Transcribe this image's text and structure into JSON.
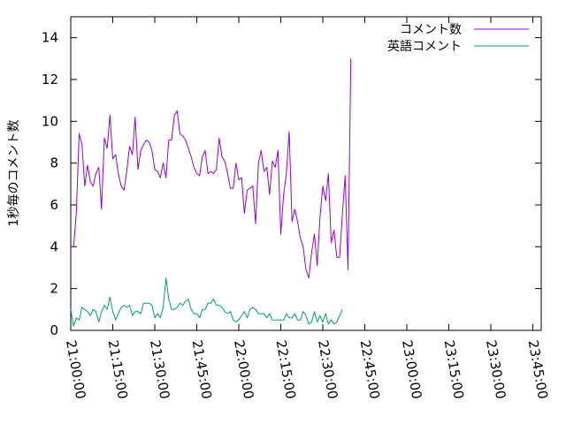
{
  "chart_data": {
    "type": "line",
    "title": "",
    "xlabel": "",
    "ylabel": "1秒毎のコメント数",
    "ylim": [
      0,
      15
    ],
    "yticks": [
      0,
      2,
      4,
      6,
      8,
      10,
      12,
      14
    ],
    "xlim": [
      "21:00:00",
      "23:48:00"
    ],
    "xticks": [
      "21:00:00",
      "21:15:00",
      "21:30:00",
      "21:45:00",
      "22:00:00",
      "22:15:00",
      "22:30:00",
      "22:45:00",
      "23:00:00",
      "23:15:00",
      "23:30:00",
      "23:45:00"
    ],
    "grid": false,
    "legend_position": "top-right",
    "series": [
      {
        "name": "コメント数",
        "color": "#9400d3",
        "points": [
          [
            "21:00:00",
            4.0
          ],
          [
            "21:01:00",
            4.0
          ],
          [
            "21:02:00",
            5.6
          ],
          [
            "21:03:00",
            9.4
          ],
          [
            "21:04:00",
            8.9
          ],
          [
            "21:05:00",
            6.9
          ],
          [
            "21:06:00",
            7.9
          ],
          [
            "21:07:00",
            7.1
          ],
          [
            "21:08:00",
            6.9
          ],
          [
            "21:09:00",
            7.5
          ],
          [
            "21:10:00",
            7.8
          ],
          [
            "21:11:00",
            5.8
          ],
          [
            "21:12:00",
            9.2
          ],
          [
            "21:13:00",
            8.7
          ],
          [
            "21:14:00",
            10.3
          ],
          [
            "21:15:00",
            8.2
          ],
          [
            "21:16:00",
            8.4
          ],
          [
            "21:17:00",
            7.5
          ],
          [
            "21:18:00",
            6.9
          ],
          [
            "21:19:00",
            6.7
          ],
          [
            "21:20:00",
            7.6
          ],
          [
            "21:21:00",
            8.8
          ],
          [
            "21:22:00",
            8.4
          ],
          [
            "21:23:00",
            10.2
          ],
          [
            "21:24:00",
            7.7
          ],
          [
            "21:25:00",
            8.6
          ],
          [
            "21:26:00",
            8.9
          ],
          [
            "21:27:00",
            9.1
          ],
          [
            "21:28:00",
            9.0
          ],
          [
            "21:29:00",
            8.6
          ],
          [
            "21:30:00",
            7.7
          ],
          [
            "21:31:00",
            7.6
          ],
          [
            "21:32:00",
            7.3
          ],
          [
            "21:33:00",
            8.0
          ],
          [
            "21:34:00",
            7.3
          ],
          [
            "21:35:00",
            9.1
          ],
          [
            "21:36:00",
            9.1
          ],
          [
            "21:37:00",
            10.3
          ],
          [
            "21:38:00",
            10.5
          ],
          [
            "21:39:00",
            9.4
          ],
          [
            "21:40:00",
            9.3
          ],
          [
            "21:41:00",
            9.1
          ],
          [
            "21:42:00",
            8.7
          ],
          [
            "21:43:00",
            8.3
          ],
          [
            "21:44:00",
            7.8
          ],
          [
            "21:45:00",
            7.5
          ],
          [
            "21:46:00",
            7.4
          ],
          [
            "21:47:00",
            8.3
          ],
          [
            "21:48:00",
            8.6
          ],
          [
            "21:49:00",
            7.5
          ],
          [
            "21:50:00",
            7.6
          ],
          [
            "21:51:00",
            7.5
          ],
          [
            "21:52:00",
            7.7
          ],
          [
            "21:53:00",
            9.2
          ],
          [
            "21:54:00",
            8.3
          ],
          [
            "21:55:00",
            8.1
          ],
          [
            "21:56:00",
            7.5
          ],
          [
            "21:57:00",
            6.8
          ],
          [
            "21:58:00",
            6.8
          ],
          [
            "21:59:00",
            8.0
          ],
          [
            "22:00:00",
            7.2
          ],
          [
            "22:01:00",
            7.3
          ],
          [
            "22:02:00",
            5.6
          ],
          [
            "22:03:00",
            6.7
          ],
          [
            "22:04:00",
            6.8
          ],
          [
            "22:05:00",
            6.9
          ],
          [
            "22:06:00",
            5.1
          ],
          [
            "22:07:00",
            8.0
          ],
          [
            "22:08:00",
            8.6
          ],
          [
            "22:09:00",
            7.6
          ],
          [
            "22:10:00",
            7.8
          ],
          [
            "22:11:00",
            6.5
          ],
          [
            "22:12:00",
            8.1
          ],
          [
            "22:13:00",
            7.8
          ],
          [
            "22:14:00",
            8.6
          ],
          [
            "22:15:00",
            4.6
          ],
          [
            "22:16:00",
            6.5
          ],
          [
            "22:17:00",
            7.5
          ],
          [
            "22:18:00",
            9.5
          ],
          [
            "22:19:00",
            5.2
          ],
          [
            "22:20:00",
            5.8
          ],
          [
            "22:21:00",
            5.2
          ],
          [
            "22:22:00",
            4.4
          ],
          [
            "22:23:00",
            4.0
          ],
          [
            "22:24:00",
            2.9
          ],
          [
            "22:25:00",
            2.5
          ],
          [
            "22:26:00",
            3.7
          ],
          [
            "22:27:00",
            4.6
          ],
          [
            "22:28:00",
            3.1
          ],
          [
            "22:29:00",
            5.4
          ],
          [
            "22:30:00",
            6.9
          ],
          [
            "22:31:00",
            6.2
          ],
          [
            "22:32:00",
            7.5
          ],
          [
            "22:33:00",
            4.2
          ],
          [
            "22:34:00",
            4.8
          ],
          [
            "22:35:00",
            3.5
          ],
          [
            "22:36:00",
            3.5
          ],
          [
            "22:37:00",
            5.6
          ],
          [
            "22:38:00",
            7.4
          ],
          [
            "22:39:00",
            2.9
          ],
          [
            "22:40:00",
            13.0
          ]
        ]
      },
      {
        "name": "英語コメント",
        "color": "#009e73",
        "points": [
          [
            "21:00:00",
            1.0
          ],
          [
            "21:01:00",
            0.2
          ],
          [
            "21:02:00",
            0.6
          ],
          [
            "21:03:00",
            0.5
          ],
          [
            "21:04:00",
            1.1
          ],
          [
            "21:05:00",
            1.0
          ],
          [
            "21:06:00",
            0.9
          ],
          [
            "21:07:00",
            0.7
          ],
          [
            "21:08:00",
            1.0
          ],
          [
            "21:09:00",
            0.9
          ],
          [
            "21:10:00",
            0.4
          ],
          [
            "21:11:00",
            0.9
          ],
          [
            "21:12:00",
            1.2
          ],
          [
            "21:13:00",
            1.0
          ],
          [
            "21:14:00",
            1.6
          ],
          [
            "21:15:00",
            0.9
          ],
          [
            "21:16:00",
            0.5
          ],
          [
            "21:17:00",
            0.8
          ],
          [
            "21:18:00",
            1.1
          ],
          [
            "21:19:00",
            1.2
          ],
          [
            "21:20:00",
            1.1
          ],
          [
            "21:21:00",
            1.2
          ],
          [
            "21:22:00",
            0.7
          ],
          [
            "21:23:00",
            0.9
          ],
          [
            "21:24:00",
            0.9
          ],
          [
            "21:25:00",
            0.8
          ],
          [
            "21:26:00",
            1.3
          ],
          [
            "21:27:00",
            1.3
          ],
          [
            "21:28:00",
            1.3
          ],
          [
            "21:29:00",
            1.2
          ],
          [
            "21:30:00",
            0.6
          ],
          [
            "21:31:00",
            0.8
          ],
          [
            "21:32:00",
            0.6
          ],
          [
            "21:33:00",
            1.1
          ],
          [
            "21:34:00",
            2.5
          ],
          [
            "21:35:00",
            1.5
          ],
          [
            "21:36:00",
            1.0
          ],
          [
            "21:37:00",
            1.0
          ],
          [
            "21:38:00",
            1.1
          ],
          [
            "21:39:00",
            1.3
          ],
          [
            "21:40:00",
            1.2
          ],
          [
            "21:41:00",
            1.4
          ],
          [
            "21:42:00",
            1.5
          ],
          [
            "21:43:00",
            1.0
          ],
          [
            "21:44:00",
            0.8
          ],
          [
            "21:45:00",
            0.8
          ],
          [
            "21:46:00",
            0.6
          ],
          [
            "21:47:00",
            1.0
          ],
          [
            "21:48:00",
            1.0
          ],
          [
            "21:49:00",
            1.3
          ],
          [
            "21:50:00",
            1.3
          ],
          [
            "21:51:00",
            1.5
          ],
          [
            "21:52:00",
            1.2
          ],
          [
            "21:53:00",
            1.2
          ],
          [
            "21:54:00",
            1.1
          ],
          [
            "21:55:00",
            0.9
          ],
          [
            "21:56:00",
            0.8
          ],
          [
            "21:57:00",
            0.9
          ],
          [
            "21:58:00",
            0.5
          ],
          [
            "21:59:00",
            0.4
          ],
          [
            "22:00:00",
            0.5
          ],
          [
            "22:01:00",
            0.7
          ],
          [
            "22:02:00",
            0.9
          ],
          [
            "22:03:00",
            0.6
          ],
          [
            "22:04:00",
            1.0
          ],
          [
            "22:05:00",
            1.1
          ],
          [
            "22:06:00",
            1.0
          ],
          [
            "22:07:00",
            0.8
          ],
          [
            "22:08:00",
            0.8
          ],
          [
            "22:09:00",
            0.8
          ],
          [
            "22:10:00",
            0.6
          ],
          [
            "22:11:00",
            0.8
          ],
          [
            "22:12:00",
            0.5
          ],
          [
            "22:13:00",
            0.5
          ],
          [
            "22:14:00",
            0.5
          ],
          [
            "22:15:00",
            0.5
          ],
          [
            "22:16:00",
            0.5
          ],
          [
            "22:17:00",
            0.8
          ],
          [
            "22:18:00",
            0.6
          ],
          [
            "22:19:00",
            0.6
          ],
          [
            "22:20:00",
            0.8
          ],
          [
            "22:21:00",
            0.5
          ],
          [
            "22:22:00",
            0.5
          ],
          [
            "22:23:00",
            0.9
          ],
          [
            "22:24:00",
            0.7
          ],
          [
            "22:25:00",
            0.3
          ],
          [
            "22:26:00",
            0.4
          ],
          [
            "22:27:00",
            0.9
          ],
          [
            "22:28:00",
            0.4
          ],
          [
            "22:29:00",
            0.7
          ],
          [
            "22:30:00",
            0.4
          ],
          [
            "22:31:00",
            0.8
          ],
          [
            "22:32:00",
            0.3
          ],
          [
            "22:33:00",
            0.5
          ],
          [
            "22:34:00",
            0.3
          ],
          [
            "22:35:00",
            0.4
          ],
          [
            "22:36:00",
            0.7
          ],
          [
            "22:37:00",
            1.0
          ]
        ]
      }
    ]
  }
}
